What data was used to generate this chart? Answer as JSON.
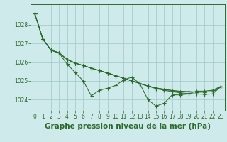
{
  "x": [
    0,
    1,
    2,
    3,
    4,
    5,
    6,
    7,
    8,
    9,
    10,
    11,
    12,
    13,
    14,
    15,
    16,
    17,
    18,
    19,
    20,
    21,
    22,
    23
  ],
  "series": [
    [
      1028.6,
      1027.25,
      1026.65,
      1026.5,
      1025.9,
      1025.45,
      1025.0,
      1024.2,
      1024.5,
      1024.6,
      1024.75,
      1025.05,
      1025.2,
      1024.85,
      1024.0,
      1023.65,
      1023.8,
      1024.25,
      1024.25,
      1024.3,
      1024.45,
      1024.45,
      1024.5,
      1024.7
    ],
    [
      1028.6,
      1027.25,
      1026.65,
      1026.5,
      1026.15,
      1025.95,
      1025.82,
      1025.68,
      1025.55,
      1025.42,
      1025.28,
      1025.14,
      1025.0,
      1024.86,
      1024.72,
      1024.58,
      1024.5,
      1024.42,
      1024.36,
      1024.32,
      1024.3,
      1024.28,
      1024.3,
      1024.68
    ],
    [
      1028.6,
      1027.25,
      1026.65,
      1026.5,
      1026.15,
      1025.95,
      1025.82,
      1025.68,
      1025.55,
      1025.42,
      1025.28,
      1025.14,
      1025.0,
      1024.86,
      1024.72,
      1024.62,
      1024.55,
      1024.48,
      1024.44,
      1024.42,
      1024.4,
      1024.4,
      1024.42,
      1024.68
    ],
    [
      1028.6,
      1027.25,
      1026.65,
      1026.5,
      1026.15,
      1025.95,
      1025.82,
      1025.68,
      1025.55,
      1025.42,
      1025.28,
      1025.14,
      1025.0,
      1024.86,
      1024.72,
      1024.62,
      1024.55,
      1024.48,
      1024.44,
      1024.42,
      1024.4,
      1024.4,
      1024.42,
      1024.68
    ]
  ],
  "line_color": "#2d6a2d",
  "bg_color": "#ceeaea",
  "grid_color": "#9ec8c8",
  "axis_color": "#2d6a2d",
  "xlabel": "Graphe pression niveau de la mer (hPa)",
  "xlabel_fontsize": 7.5,
  "ylim": [
    1023.4,
    1029.1
  ],
  "yticks": [
    1024,
    1025,
    1026,
    1027,
    1028
  ],
  "xticks": [
    0,
    1,
    2,
    3,
    4,
    5,
    6,
    7,
    8,
    9,
    10,
    11,
    12,
    13,
    14,
    15,
    16,
    17,
    18,
    19,
    20,
    21,
    22,
    23
  ],
  "tick_fontsize": 5.5,
  "marker_size": 2.0,
  "line_width": 0.75
}
